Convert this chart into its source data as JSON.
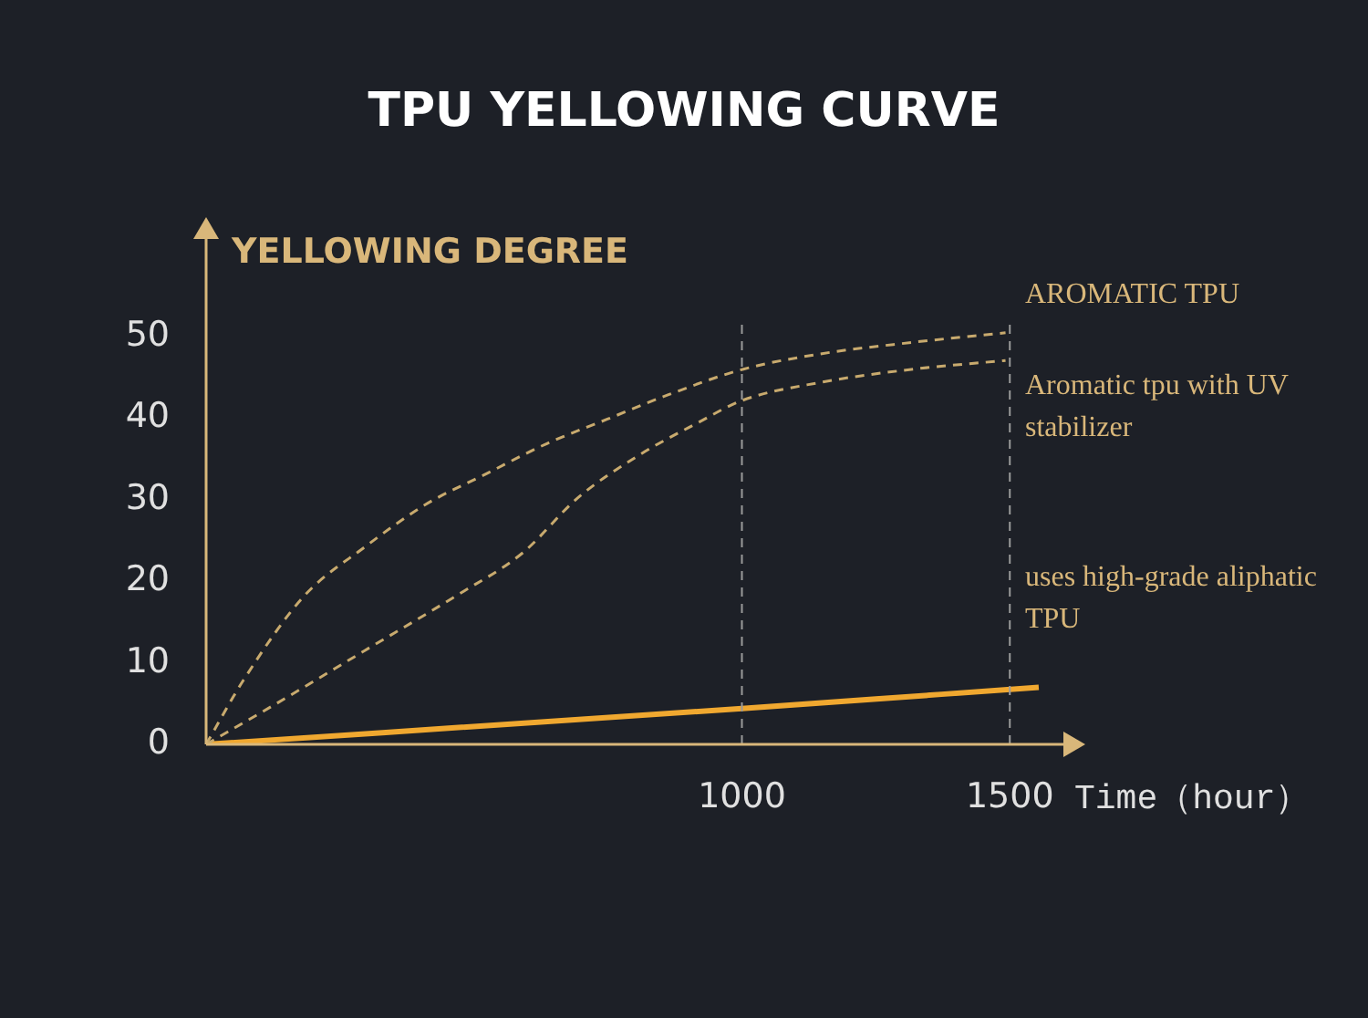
{
  "chart_data": {
    "type": "line",
    "title": "TPU YELLOWING CURVE",
    "ylabel": "YELLOWING DEGREE",
    "xlabel": "Time（hour）",
    "xlim": [
      0,
      1600
    ],
    "xticks": [
      1000,
      1500
    ],
    "ylim": [
      0,
      62
    ],
    "yticks": [
      0,
      10,
      20,
      30,
      40,
      50
    ],
    "grid": false,
    "legend": false,
    "marker": "none",
    "ref_lines": [
      {
        "axis": "x",
        "value": 1000,
        "color": "#9a9a9a",
        "line_style": "dashed"
      },
      {
        "axis": "x",
        "value": 1500,
        "color": "#9a9a9a",
        "line_style": "dashed"
      }
    ],
    "series": [
      {
        "name": "AROMATIC TPU",
        "color": "#c8aa6e",
        "line_style": "dashed",
        "x": [
          0,
          69,
          183,
          296,
          409,
          523,
          636,
          749,
          863,
          1001,
          1146,
          1316,
          1492
        ],
        "values": [
          0,
          7.8,
          18.2,
          24.2,
          29.4,
          33.2,
          36.9,
          39.9,
          42.9,
          46.0,
          47.9,
          49.3,
          50.5
        ]
      },
      {
        "name": "Aromatic tpu with UV stabilizer",
        "color": "#c8aa6e",
        "line_style": "dashed",
        "x": [
          0,
          126,
          296,
          466,
          591,
          693,
          806,
          919,
          1001,
          1146,
          1316,
          1492
        ],
        "values": [
          0,
          4.8,
          11.5,
          18.2,
          23.5,
          30.2,
          35.4,
          39.5,
          42.2,
          44.4,
          46.0,
          47.1
        ]
      },
      {
        "name": "uses high-grade aliphatic TPU",
        "color": "#f0a830",
        "line_style": "solid",
        "x": [
          0,
          1000,
          1554
        ],
        "values": [
          0,
          4.4,
          7.0
        ]
      }
    ]
  }
}
